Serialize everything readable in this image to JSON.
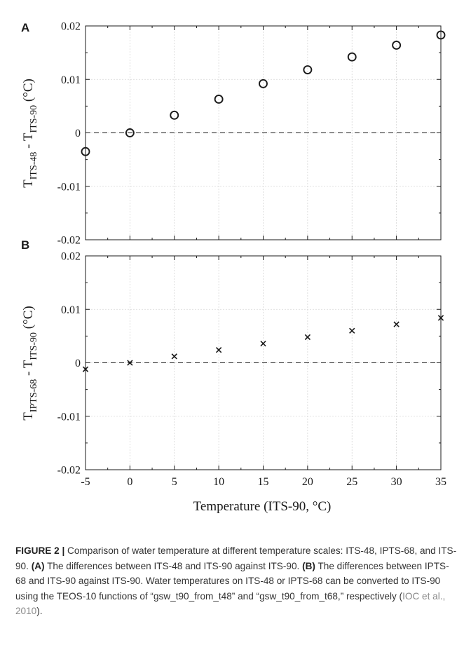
{
  "chart_data": [
    {
      "panel": "A",
      "type": "scatter",
      "marker": "circle",
      "ylabel": {
        "main": "T",
        "sub1": "ITS-48",
        "sep": " - T",
        "sub2": "ITS-90",
        "unit": " (°C)"
      },
      "xlim": [
        -5,
        35
      ],
      "ylim": [
        -0.02,
        0.02
      ],
      "x_ticks": [
        -5,
        0,
        5,
        10,
        15,
        20,
        25,
        30,
        35
      ],
      "y_ticks": [
        -0.02,
        -0.01,
        0,
        0.01,
        0.02
      ],
      "y_tick_labels": [
        "-0.02",
        "-0.01",
        "0",
        "0.01",
        "0.02"
      ],
      "grid": true,
      "zero_line": "dashed",
      "x": [
        -5,
        0,
        5,
        10,
        15,
        20,
        25,
        30,
        35
      ],
      "y": [
        -0.0035,
        0.0,
        0.0033,
        0.0063,
        0.0092,
        0.0118,
        0.0142,
        0.0164,
        0.0183
      ]
    },
    {
      "panel": "B",
      "type": "scatter",
      "marker": "x",
      "ylabel": {
        "main": "T",
        "sub1": "IPTS-68",
        "sep": " - T",
        "sub2": "ITS-90",
        "unit": " (°C)"
      },
      "xlabel": "Temperature (ITS-90, °C)",
      "xlim": [
        -5,
        35
      ],
      "ylim": [
        -0.02,
        0.02
      ],
      "x_ticks": [
        -5,
        0,
        5,
        10,
        15,
        20,
        25,
        30,
        35
      ],
      "x_tick_labels": [
        "-5",
        "0",
        "5",
        "10",
        "15",
        "20",
        "25",
        "30",
        "35"
      ],
      "y_ticks": [
        -0.02,
        -0.01,
        0,
        0.01,
        0.02
      ],
      "y_tick_labels": [
        "-0.02",
        "-0.01",
        "0",
        "0.01",
        "0.02"
      ],
      "grid": true,
      "zero_line": "dashed",
      "x": [
        -5,
        0,
        5,
        10,
        15,
        20,
        25,
        30,
        35
      ],
      "y": [
        -0.0012,
        0.0,
        0.0012,
        0.0024,
        0.0036,
        0.0048,
        0.006,
        0.0072,
        0.0084
      ]
    }
  ],
  "caption": {
    "figure_label": "FIGURE 2 |",
    "intro": " Comparison of water temperature at different temperature scales: ITS-48, IPTS-68, and ITS-90. ",
    "a_label": "(A)",
    "a_text": " The differences between ITS-48 and ITS-90 against ITS-90. ",
    "b_label": "(B)",
    "b_text": " The differences between IPTS-68 and ITS-90 against ITS-90. Water temperatures on ITS-48 or IPTS-68 can be converted to ITS-90 using the TEOS-10 functions of “gsw_t90_from_t48” and “gsw_t90_from_t68,” respectively (",
    "citation": "IOC et al., 2010",
    "end": ")."
  },
  "style": {
    "axis_color": "#1a1a1a",
    "grid_color": "#d6d6d6",
    "marker_color": "#1a1a1a"
  }
}
